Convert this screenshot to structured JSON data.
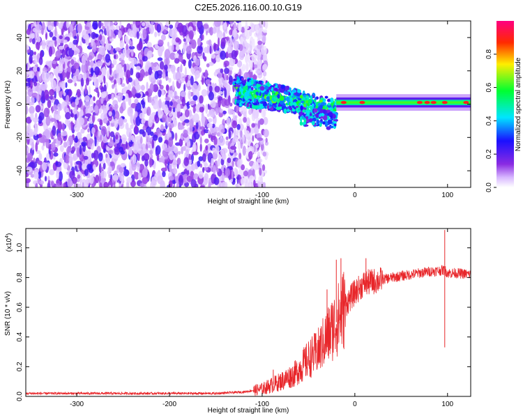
{
  "title": "C2E5.2026.116.00.10.G19",
  "chart_data": [
    {
      "type": "heatmap",
      "description_ref": "spectrogram",
      "xlabel": "Height of straight line (km)",
      "ylabel": "Frequency (Hz)",
      "xlim": [
        -355,
        125
      ],
      "ylim": [
        -50,
        50
      ],
      "xticks": [
        -300,
        -200,
        -100,
        0,
        100
      ],
      "yticks": [
        -40,
        -20,
        0,
        20,
        40
      ],
      "colorbar": {
        "label": "Normalized spectral amplitude",
        "range": [
          0,
          1
        ],
        "ticks": [
          "0.0",
          "0.2",
          "0.4",
          "0.6",
          "0.8"
        ],
        "tick_values": [
          0.0,
          0.2,
          0.4,
          0.6,
          0.8
        ],
        "colors": [
          "#ffffff",
          "#8a2be2",
          "#0000ff",
          "#00ffff",
          "#00ff00",
          "#ffff00",
          "#ff0000",
          "#ff007f"
        ]
      },
      "features": {
        "noise_region_x": [
          -355,
          -105
        ],
        "transition_x": [
          -130,
          -20
        ],
        "carrier_band_x": [
          -20,
          125
        ],
        "carrier_freq_hz": 1,
        "carrier_halfwidth_hz": 3,
        "peaks_x": [
          -12,
          8,
          70,
          78,
          85,
          97,
          120
        ]
      }
    },
    {
      "type": "line",
      "xlabel": "Height of straight line (km)",
      "ylabel": "SNR (10 * v/v)",
      "yscale_label": "(x10",
      "yscale_exp": "4",
      "xlim": [
        -355,
        125
      ],
      "ylim": [
        0,
        1.13
      ],
      "xticks": [
        -300,
        -200,
        -100,
        0,
        100
      ],
      "yticks": [
        "0.0",
        "0.2",
        "0.4",
        "0.6",
        "0.8",
        "1.0"
      ],
      "ytick_values": [
        0.0,
        0.2,
        0.4,
        0.6,
        0.8,
        1.0
      ],
      "series": [
        {
          "name": "SNR",
          "color": "#e8262a",
          "x": [
            -355,
            -300,
            -250,
            -200,
            -150,
            -120,
            -100,
            -80,
            -65,
            -50,
            -40,
            -30,
            -20,
            -15,
            -10,
            0,
            10,
            25,
            40,
            60,
            80,
            97,
            100,
            110,
            125
          ],
          "y": [
            0.02,
            0.02,
            0.02,
            0.02,
            0.02,
            0.03,
            0.05,
            0.1,
            0.15,
            0.25,
            0.3,
            0.4,
            0.5,
            0.55,
            0.62,
            0.7,
            0.76,
            0.78,
            0.8,
            0.82,
            0.84,
            0.85,
            0.83,
            0.83,
            0.82
          ],
          "spikes": [
            [
              -95,
              0.08
            ],
            [
              -20,
              0.92
            ],
            [
              -15,
              0.93
            ],
            [
              12,
              0.93
            ],
            [
              97,
              1.12
            ],
            [
              97,
              0.33
            ],
            [
              -88,
              0.18
            ],
            [
              -30,
              0.72
            ]
          ]
        }
      ]
    }
  ]
}
